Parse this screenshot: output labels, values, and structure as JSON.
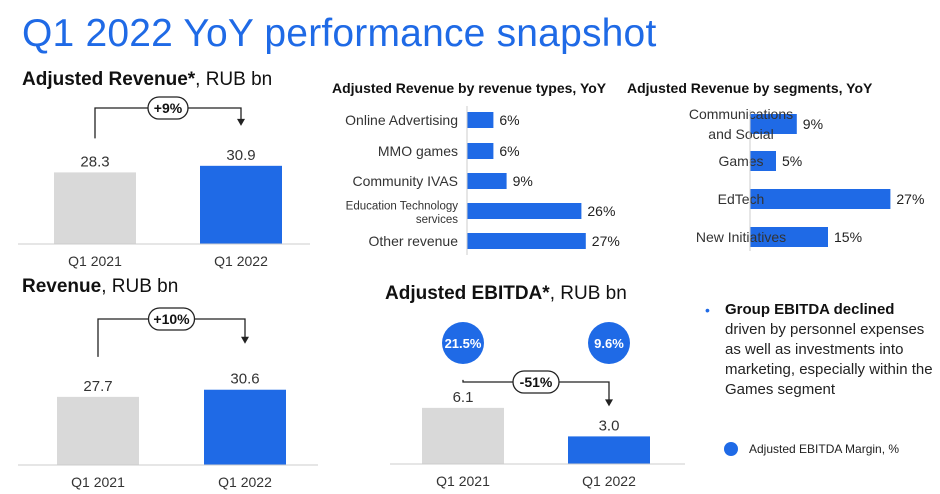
{
  "page": {
    "title": "Q1 2022 YoY performance snapshot"
  },
  "colors": {
    "accent": "#1f6ae6",
    "prior": "#d9d9d9",
    "text": "#222222"
  },
  "sections": {
    "adj_revenue": {
      "title_bold": "Adjusted Revenue*",
      "title_rest": ", RUB bn"
    },
    "revenue": {
      "title_bold": "Revenue",
      "title_rest": ", RUB bn"
    },
    "by_type": {
      "title": "Adjusted Revenue by revenue types, YoY"
    },
    "by_segment": {
      "title": "Adjusted Revenue by segments, YoY"
    },
    "ebitda": {
      "title_bold": "Adjusted EBITDA*",
      "title_rest": ", RUB bn"
    }
  },
  "notes": {
    "bullet": "•",
    "heading": "Group EBITDA declined",
    "body": "driven by personnel expenses as well as investments into marketing, especially within the Games segment"
  },
  "legend": {
    "label": "Adjusted EBITDA Margin, %"
  },
  "chart_data": [
    {
      "id": "adj_revenue",
      "type": "bar",
      "categories": [
        "Q1 2021",
        "Q1 2022"
      ],
      "values": [
        28.3,
        30.9
      ],
      "value_labels": [
        "28.3",
        "30.9"
      ],
      "change_label": "+9%"
    },
    {
      "id": "revenue",
      "type": "bar",
      "categories": [
        "Q1 2021",
        "Q1 2022"
      ],
      "values": [
        27.7,
        30.6
      ],
      "value_labels": [
        "27.7",
        "30.6"
      ],
      "change_label": "+10%"
    },
    {
      "id": "by_type",
      "type": "bar",
      "orientation": "horizontal",
      "categories": [
        "Online Advertising",
        "MMO games",
        "Community IVAS",
        "Education Technology services",
        "Other revenue"
      ],
      "category_lines": [
        [
          "Online Advertising"
        ],
        [
          "MMO games"
        ],
        [
          "Community IVAS"
        ],
        [
          "Education Technology",
          "services"
        ],
        [
          "Other revenue"
        ]
      ],
      "values": [
        6,
        6,
        9,
        26,
        27
      ],
      "value_labels": [
        "6%",
        "6%",
        "9%",
        "26%",
        "27%"
      ]
    },
    {
      "id": "by_segment",
      "type": "bar",
      "orientation": "horizontal",
      "categories": [
        "Communications and Social",
        "Games",
        "EdTech",
        "New Initiatives"
      ],
      "category_lines": [
        [
          "Communications",
          "and Social"
        ],
        [
          "Games"
        ],
        [
          "EdTech"
        ],
        [
          "New Initiatives"
        ]
      ],
      "values": [
        9,
        5,
        27,
        15
      ],
      "value_labels": [
        "9%",
        "5%",
        "27%",
        "15%"
      ]
    },
    {
      "id": "ebitda",
      "type": "bar",
      "categories": [
        "Q1 2021",
        "Q1 2022"
      ],
      "values": [
        6.1,
        3.0
      ],
      "value_labels": [
        "6.1",
        "3.0"
      ],
      "margins": [
        "21.5%",
        "9.6%"
      ],
      "change_label": "-51%"
    }
  ]
}
